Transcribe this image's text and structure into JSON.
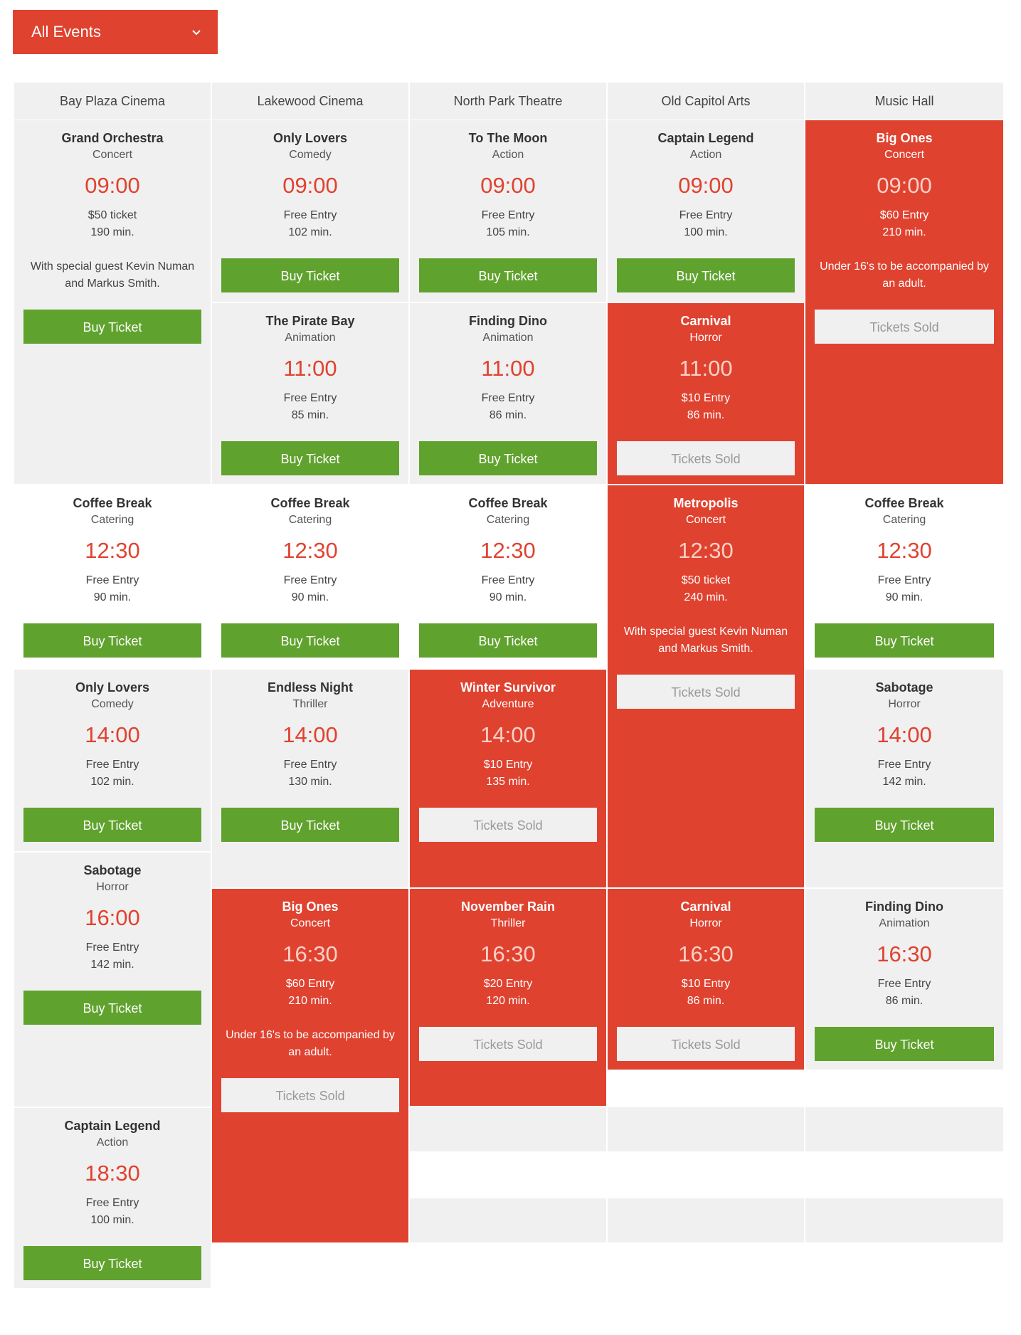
{
  "filter": {
    "label": "All Events",
    "icon": "chevron-down-icon"
  },
  "venues": [
    "Bay Plaza Cinema",
    "Lakewood Cinema",
    "North Park Theatre",
    "Old Capitol Arts",
    "Music Hall"
  ],
  "colors": {
    "accent": "#e04230",
    "buy": "#60a22e",
    "cell": "#f0f0f0"
  },
  "events": [
    {
      "title": "Grand Orchestra",
      "category": "Concert",
      "time": "09:00",
      "price": "$50 ticket",
      "duration": "190 min.",
      "note": "With special guest Kevin Numan and Markus Smith.",
      "button": "Buy Ticket"
    },
    {
      "title": "Only Lovers",
      "category": "Comedy",
      "time": "09:00",
      "price": "Free Entry",
      "duration": "102 min.",
      "button": "Buy Ticket"
    },
    {
      "title": "To The Moon",
      "category": "Action",
      "time": "09:00",
      "price": "Free Entry",
      "duration": "105 min.",
      "button": "Buy Ticket"
    },
    {
      "title": "Captain Legend",
      "category": "Action",
      "time": "09:00",
      "price": "Free Entry",
      "duration": "100 min.",
      "button": "Buy Ticket"
    },
    {
      "title": "Big Ones",
      "category": "Concert",
      "time": "09:00",
      "price": "$60 Entry",
      "duration": "210 min.",
      "note": "Under 16's to be accompanied by an adult.",
      "button": "Tickets Sold"
    },
    {
      "title": "The Pirate Bay",
      "category": "Animation",
      "time": "11:00",
      "price": "Free Entry",
      "duration": "85 min.",
      "button": "Buy Ticket"
    },
    {
      "title": "Finding Dino",
      "category": "Animation",
      "time": "11:00",
      "price": "Free Entry",
      "duration": "86 min.",
      "button": "Buy Ticket"
    },
    {
      "title": "Carnival",
      "category": "Horror",
      "time": "11:00",
      "price": "$10 Entry",
      "duration": "86 min.",
      "button": "Tickets Sold"
    },
    {
      "title": "Coffee Break",
      "category": "Catering",
      "time": "12:30",
      "price": "Free Entry",
      "duration": "90 min.",
      "button": "Buy Ticket"
    },
    {
      "title": "Coffee Break",
      "category": "Catering",
      "time": "12:30",
      "price": "Free Entry",
      "duration": "90 min.",
      "button": "Buy Ticket"
    },
    {
      "title": "Coffee Break",
      "category": "Catering",
      "time": "12:30",
      "price": "Free Entry",
      "duration": "90 min.",
      "button": "Buy Ticket"
    },
    {
      "title": "Metropolis",
      "category": "Concert",
      "time": "12:30",
      "price": "$50 ticket",
      "duration": "240 min.",
      "note": "With special guest Kevin Numan and Markus Smith.",
      "button": "Tickets Sold"
    },
    {
      "title": "Coffee Break",
      "category": "Catering",
      "time": "12:30",
      "price": "Free Entry",
      "duration": "90 min.",
      "button": "Buy Ticket"
    },
    {
      "title": "Only Lovers",
      "category": "Comedy",
      "time": "14:00",
      "price": "Free Entry",
      "duration": "102 min.",
      "button": "Buy Ticket"
    },
    {
      "title": "Endless Night",
      "category": "Thriller",
      "time": "14:00",
      "price": "Free Entry",
      "duration": "130 min.",
      "button": "Buy Ticket"
    },
    {
      "title": "Winter Survivor",
      "category": "Adventure",
      "time": "14:00",
      "price": "$10 Entry",
      "duration": "135 min.",
      "button": "Tickets Sold"
    },
    {
      "title": "Sabotage",
      "category": "Horror",
      "time": "14:00",
      "price": "Free Entry",
      "duration": "142 min.",
      "button": "Buy Ticket"
    },
    {
      "title": "Sabotage",
      "category": "Horror",
      "time": "16:00",
      "price": "Free Entry",
      "duration": "142 min.",
      "button": "Buy Ticket"
    },
    {
      "title": "Big Ones",
      "category": "Concert",
      "time": "16:30",
      "price": "$60 Entry",
      "duration": "210 min.",
      "note": "Under 16's to be accompanied by an adult.",
      "button": "Tickets Sold"
    },
    {
      "title": "November Rain",
      "category": "Thriller",
      "time": "16:30",
      "price": "$20 Entry",
      "duration": "120 min.",
      "button": "Tickets Sold"
    },
    {
      "title": "Carnival",
      "category": "Horror",
      "time": "16:30",
      "price": "$10 Entry",
      "duration": "86 min.",
      "button": "Tickets Sold"
    },
    {
      "title": "Finding Dino",
      "category": "Animation",
      "time": "16:30",
      "price": "Free Entry",
      "duration": "86 min.",
      "button": "Buy Ticket"
    },
    {
      "title": "Captain Legend",
      "category": "Action",
      "time": "18:30",
      "price": "Free Entry",
      "duration": "100 min.",
      "button": "Buy Ticket"
    }
  ]
}
